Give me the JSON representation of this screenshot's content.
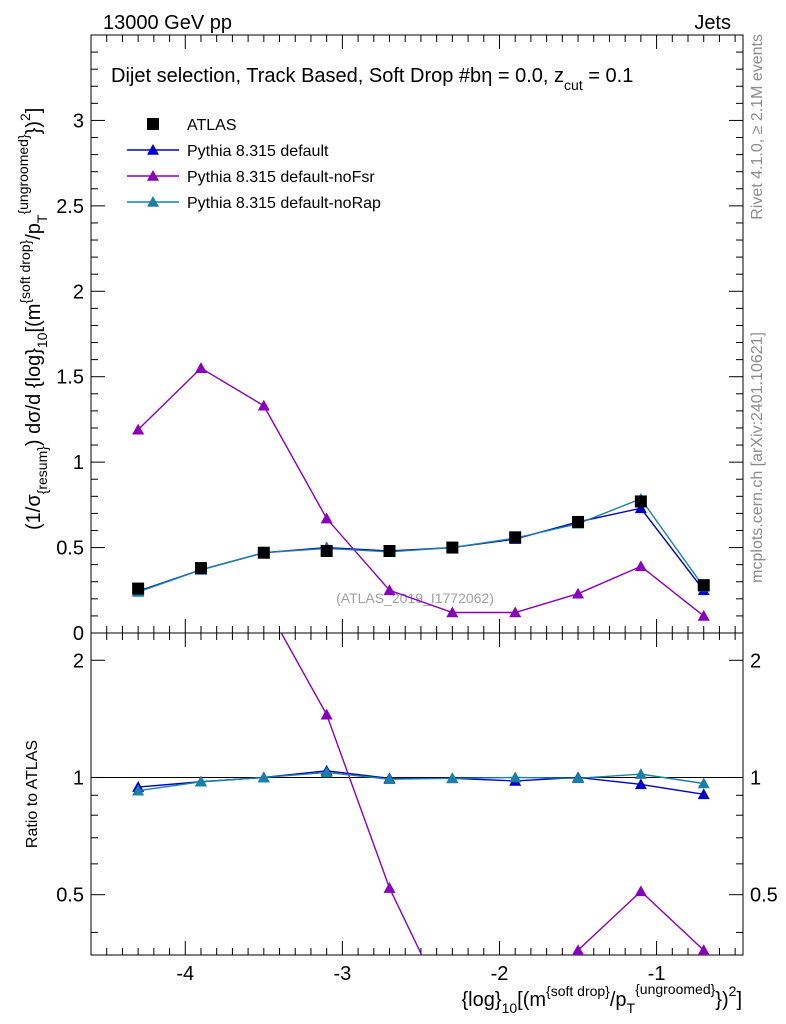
{
  "header": {
    "energy": "13000 GeV pp",
    "category": "Jets"
  },
  "side_labels": {
    "rivet": "Rivet 4.1.0, ≥ 2.1M events",
    "mcplots": "mcplots.cern.ch [arXiv:2401.10621]"
  },
  "chart_data": {
    "type": "line",
    "title": "Dijet selection, Track Based, Soft Drop #b",
    "title_suffix": "η = 0.0, z",
    "title_suffix_sub": "cut",
    "title_suffix_end": " = 0.1",
    "watermark": "(ATLAS_2019_I1772062)",
    "xlabel": "{log}_{10}[(m^{soft drop}/p_T^{ungroomed})^2]",
    "ylabel": "(1/σ_{resum}) dσ/d {log}_{10}[(m^{soft drop}/p_T^{ungroomed})^2]",
    "ratio_ylabel": "Ratio to ATLAS",
    "xlim": [
      -4.6,
      -0.45
    ],
    "ylim_main": [
      0,
      3.5
    ],
    "ylim_ratio": [
      0.35,
      2.35
    ],
    "x": [
      -4.3,
      -3.9,
      -3.5,
      -3.1,
      -2.7,
      -2.3,
      -1.9,
      -1.5,
      -1.1,
      -0.7
    ],
    "x_ticks": [
      "-4",
      "-3",
      "-2",
      "-1"
    ],
    "x_tick_values": [
      -4,
      -3,
      -2,
      -1
    ],
    "y_ticks_main": [
      "0",
      "0.5",
      "1",
      "1.5",
      "2",
      "2.5",
      "3"
    ],
    "y_tick_values_main": [
      0,
      0.5,
      1,
      1.5,
      2,
      2.5,
      3
    ],
    "y_ticks_ratio": [
      "0.5",
      "1",
      "2"
    ],
    "y_tick_values_ratio": [
      0.5,
      1,
      2
    ],
    "series": [
      {
        "name": "ATLAS",
        "color": "#000000",
        "marker": "square",
        "line": false,
        "values": [
          0.26,
          0.38,
          0.47,
          0.48,
          0.48,
          0.5,
          0.56,
          0.65,
          0.77,
          0.28
        ]
      },
      {
        "name": "Pythia 8.315 default",
        "color": "#0000cc",
        "marker": "triangle",
        "line": true,
        "values": [
          0.245,
          0.37,
          0.47,
          0.5,
          0.48,
          0.5,
          0.55,
          0.65,
          0.73,
          0.25
        ],
        "ratio": [
          0.945,
          0.975,
          1.0,
          1.04,
          0.995,
          0.995,
          0.98,
          1.0,
          0.96,
          0.905
        ]
      },
      {
        "name": "Pythia 8.315 default-noFsr",
        "color": "#8800bb",
        "marker": "triangle",
        "line": true,
        "values": [
          1.19,
          1.55,
          1.33,
          0.67,
          0.25,
          0.12,
          0.12,
          0.23,
          0.39,
          0.1
        ],
        "ratio": [
          4.58,
          4.08,
          2.83,
          1.45,
          0.52,
          0.24,
          0.21,
          0.36,
          0.51,
          0.36
        ]
      },
      {
        "name": "Pythia 8.315 default-noRap",
        "color": "#1a80a8",
        "marker": "triangle",
        "line": true,
        "values": [
          0.24,
          0.37,
          0.47,
          0.495,
          0.475,
          0.5,
          0.555,
          0.64,
          0.785,
          0.27
        ],
        "ratio": [
          0.925,
          0.975,
          1.0,
          1.03,
          0.99,
          0.995,
          1.0,
          0.995,
          1.02,
          0.965
        ]
      }
    ]
  }
}
